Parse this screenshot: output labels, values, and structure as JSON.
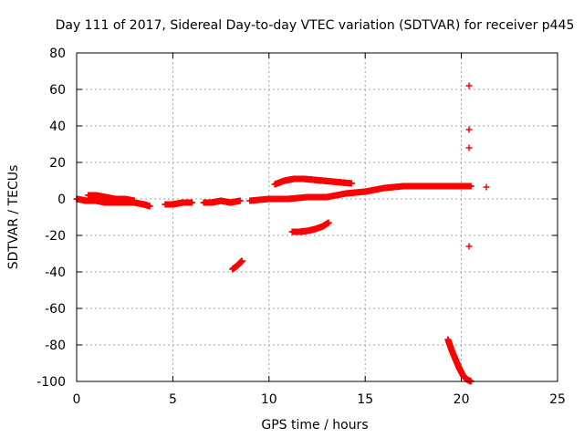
{
  "chart_data": {
    "type": "scatter",
    "title": "Day 111 of 2017, Sidereal Day-to-day VTEC variation (SDTVAR) for receiver p445",
    "xlabel": "GPS time / hours",
    "ylabel": "SDTVAR / TECUs",
    "xlim": [
      0,
      25
    ],
    "ylim": [
      -100,
      80
    ],
    "xticks": [
      0,
      5,
      10,
      15,
      20,
      25
    ],
    "yticks": [
      -100,
      -80,
      -60,
      -40,
      -20,
      0,
      20,
      40,
      60,
      80
    ],
    "grid": true,
    "marker": "+",
    "color": "#ff0000",
    "series": [
      {
        "name": "main band early",
        "segments": [
          {
            "x": [
              0.0,
              0.5,
              1.0,
              1.5,
              2.0,
              2.5,
              3.0,
              3.5,
              3.8
            ],
            "y": [
              0,
              -1,
              -1,
              -2,
              -2,
              -2,
              -2,
              -3,
              -4
            ]
          },
          {
            "x": [
              0.6,
              1.0,
              1.5,
              2.0,
              2.5,
              3.0
            ],
            "y": [
              2,
              2,
              1,
              0,
              0,
              -1
            ]
          },
          {
            "x": [
              4.6,
              5.0,
              5.5,
              6.0
            ],
            "y": [
              -3,
              -3,
              -2,
              -2
            ]
          },
          {
            "x": [
              6.6,
              7.0,
              7.5,
              8.0,
              8.5
            ],
            "y": [
              -2,
              -2,
              -1,
              -2,
              -1
            ]
          },
          {
            "x": [
              9.0,
              10.0,
              11.0,
              12.0,
              13.0,
              14.0,
              15.0,
              16.0,
              17.0,
              18.0,
              19.0,
              20.0,
              20.5
            ],
            "y": [
              -1,
              0,
              0,
              1,
              1,
              3,
              4,
              6,
              7,
              7,
              7,
              7,
              7
            ]
          }
        ]
      },
      {
        "name": "upper arc",
        "x": [
          10.3,
          10.8,
          11.3,
          11.8,
          12.3,
          12.8,
          13.3,
          13.8,
          14.3
        ],
        "y": [
          8,
          10,
          11,
          11,
          10.5,
          10,
          9.5,
          9,
          8.5
        ]
      },
      {
        "name": "lower arc",
        "x": [
          11.2,
          11.6,
          12.0,
          12.4,
          12.8,
          13.1
        ],
        "y": [
          -18,
          -18,
          -17.5,
          -16.5,
          -15,
          -13
        ]
      },
      {
        "name": "short segment",
        "x": [
          8.1,
          8.3,
          8.5,
          8.6
        ],
        "y": [
          -38.5,
          -37,
          -35,
          -34
        ]
      },
      {
        "name": "steep descent",
        "x": [
          19.3,
          19.5,
          19.7,
          19.9,
          20.1,
          20.3,
          20.5
        ],
        "y": [
          -77,
          -83,
          -88,
          -93,
          -97,
          -99,
          -100
        ]
      },
      {
        "name": "outliers",
        "x": [
          20.4,
          20.4,
          20.4,
          20.4,
          21.3
        ],
        "y": [
          62,
          38,
          28,
          -26,
          6.5
        ]
      }
    ]
  }
}
